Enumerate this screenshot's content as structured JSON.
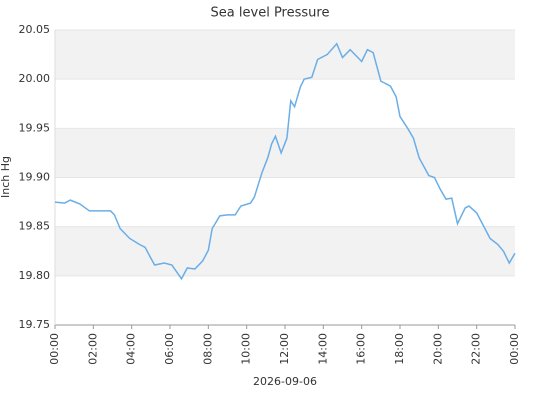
{
  "chart_data": {
    "type": "line",
    "title": "Sea level Pressure",
    "y_label": "Inch Hg",
    "x_label": "2026-09-06",
    "color": "#6aaee8",
    "grid": true,
    "x": [
      0,
      0.5,
      0.8,
      1.3,
      1.8,
      2.3,
      2.9,
      3.1,
      3.4,
      3.9,
      4.4,
      4.7,
      5,
      5.2,
      5.7,
      6.1,
      6.6,
      6.9,
      7.3,
      7.7,
      8,
      8.2,
      8.6,
      9,
      9.4,
      9.7,
      10.2,
      10.4,
      10.8,
      11.1,
      11.3,
      11.5,
      11.8,
      12.1,
      12.3,
      12.5,
      12.8,
      13,
      13.4,
      13.7,
      14.2,
      14.7,
      15,
      15.4,
      15.8,
      16,
      16.3,
      16.6,
      17,
      17.5,
      17.8,
      18,
      18.4,
      18.7,
      19,
      19.5,
      19.8,
      20.1,
      20.4,
      20.7,
      21,
      21.4,
      21.6,
      22,
      22.3,
      22.7,
      23.1,
      23.4,
      23.7,
      24
    ],
    "values": [
      19.875,
      19.874,
      19.877,
      19.873,
      19.866,
      19.866,
      19.866,
      19.862,
      19.848,
      19.838,
      19.832,
      19.829,
      19.818,
      19.811,
      19.813,
      19.811,
      19.797,
      19.808,
      19.807,
      19.815,
      19.826,
      19.848,
      19.861,
      19.862,
      19.862,
      19.871,
      19.874,
      19.88,
      19.905,
      19.92,
      19.934,
      19.942,
      19.925,
      19.94,
      19.978,
      19.972,
      19.992,
      20.0,
      20.002,
      20.02,
      20.025,
      20.036,
      20.022,
      20.03,
      20.022,
      20.018,
      20.03,
      20.027,
      19.998,
      19.993,
      19.982,
      19.962,
      19.95,
      19.94,
      19.92,
      19.902,
      19.9,
      19.888,
      19.878,
      19.879,
      19.853,
      19.869,
      19.871,
      19.864,
      19.853,
      19.838,
      19.832,
      19.825,
      19.813,
      19.823
    ],
    "xlim": [
      0,
      24
    ],
    "xticks": [
      {
        "value": 0,
        "label": "00:00"
      },
      {
        "value": 2,
        "label": "02:00"
      },
      {
        "value": 4,
        "label": "04:00"
      },
      {
        "value": 6,
        "label": "06:00"
      },
      {
        "value": 8,
        "label": "08:00"
      },
      {
        "value": 10,
        "label": "10:00"
      },
      {
        "value": 12,
        "label": "12:00"
      },
      {
        "value": 14,
        "label": "14:00"
      },
      {
        "value": 16,
        "label": "16:00"
      },
      {
        "value": 18,
        "label": "18:00"
      },
      {
        "value": 20,
        "label": "20:00"
      },
      {
        "value": 22,
        "label": "22:00"
      },
      {
        "value": 24,
        "label": "00:00"
      }
    ],
    "ylim": [
      19.75,
      20.05
    ],
    "yticks": [
      19.75,
      {
        "value": 19.8,
        "label": "19.80"
      },
      19.85,
      {
        "value": 19.9,
        "label": "19.90"
      },
      19.95,
      {
        "value": 20.0,
        "label": "20.00"
      },
      20.05
    ]
  }
}
